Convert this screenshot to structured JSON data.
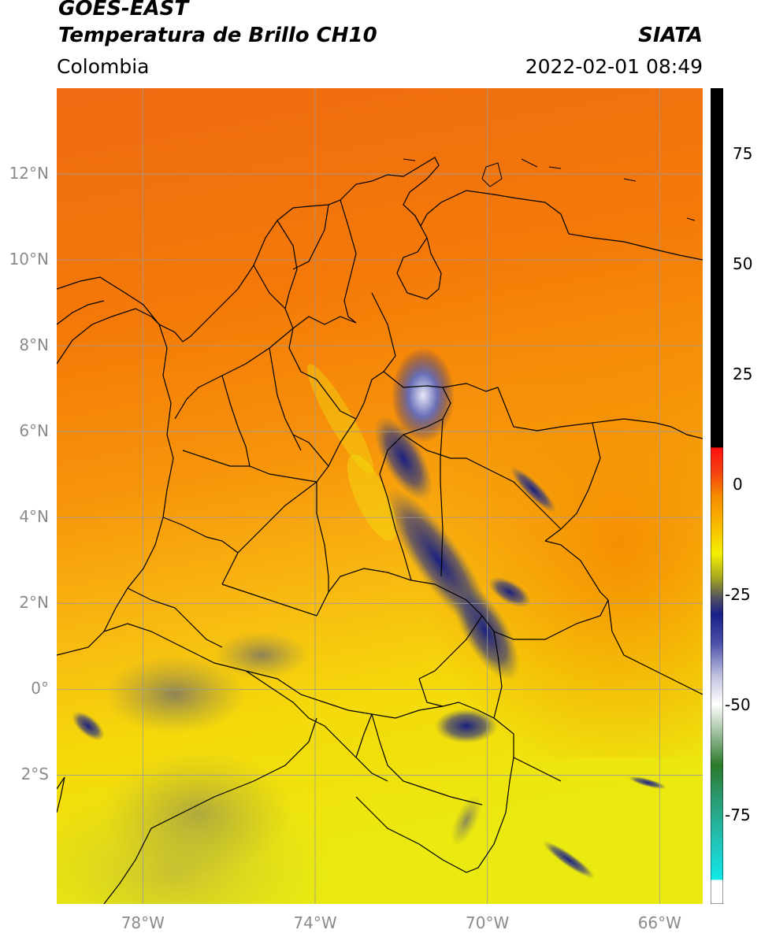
{
  "header": {
    "title_line1": "GOES-EAST",
    "title_line2": "Temperatura de Brillo CH10",
    "region": "Colombia",
    "source": "SIATA",
    "timestamp": "2022-02-01 08:49"
  },
  "axes": {
    "lat_labels": [
      "12°N",
      "10°N",
      "8°N",
      "6°N",
      "4°N",
      "2°N",
      "0°",
      "2°S"
    ],
    "lat_values": [
      12,
      10,
      8,
      6,
      4,
      2,
      0,
      -2
    ],
    "lon_labels": [
      "78°W",
      "74°W",
      "70°W",
      "66°W"
    ],
    "lon_values": [
      -78,
      -74,
      -70,
      -66
    ],
    "lat_range": [
      -5,
      14
    ],
    "lon_range": [
      -80,
      -65
    ]
  },
  "colorbar": {
    "labels": [
      "75",
      "50",
      "25",
      "0",
      "-25",
      "-50",
      "-75"
    ],
    "values": [
      75,
      50,
      25,
      0,
      -25,
      -50,
      -75
    ],
    "range": [
      -95,
      90
    ]
  },
  "colors": {
    "background_orange": "#f58a00",
    "north_orange": "#ef6a10",
    "south_yellow": "#f2e600",
    "cloud_blue": "#1a1f7a"
  }
}
